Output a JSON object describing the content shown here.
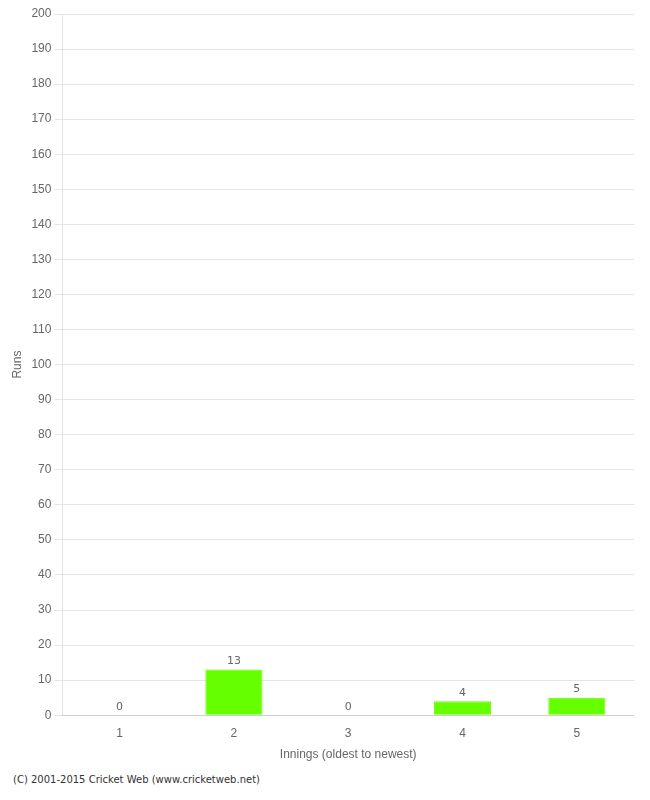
{
  "chart_data": {
    "type": "bar",
    "categories": [
      "1",
      "2",
      "3",
      "4",
      "5"
    ],
    "values": [
      0,
      13,
      0,
      4,
      5
    ],
    "color": "#66ff00",
    "xlabel": "Innings (oldest to newest)",
    "ylabel": "Runs",
    "ylim": [
      0,
      200
    ],
    "yticks": [
      0,
      10,
      20,
      30,
      40,
      50,
      60,
      70,
      80,
      90,
      100,
      110,
      120,
      130,
      140,
      150,
      160,
      170,
      180,
      190,
      200
    ],
    "grid": true,
    "data_labels": true,
    "annotations": [
      "(C) 2001-2015 Cricket Web (www.cricketweb.net)"
    ]
  }
}
